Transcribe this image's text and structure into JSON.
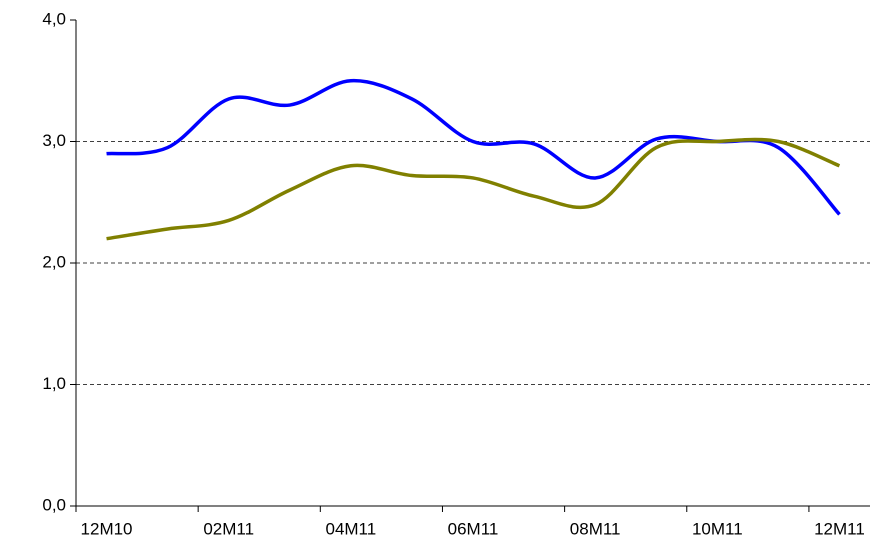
{
  "chart_data": {
    "type": "line",
    "categories": [
      "12M10",
      null,
      "02M11",
      null,
      "04M11",
      null,
      "06M11",
      null,
      "08M11",
      null,
      "10M11",
      null,
      "12M11"
    ],
    "series": [
      {
        "color": "#0000ff",
        "values": [
          2.9,
          2.95,
          3.35,
          3.3,
          3.5,
          3.35,
          3.0,
          2.98,
          2.7,
          3.02,
          3.0,
          2.95,
          2.4
        ]
      },
      {
        "color": "#808000",
        "values": [
          2.2,
          2.28,
          2.35,
          2.6,
          2.8,
          2.72,
          2.7,
          2.55,
          2.48,
          2.95,
          3.0,
          3.0,
          2.8
        ]
      }
    ],
    "ylim": [
      0,
      4
    ],
    "yticks": [
      {
        "value": 0,
        "label": "0,0"
      },
      {
        "value": 1,
        "label": "1,0"
      },
      {
        "value": 2,
        "label": "2,0"
      },
      {
        "value": 3,
        "label": "3,0"
      },
      {
        "value": 4,
        "label": "4,0"
      }
    ],
    "grid": true
  }
}
